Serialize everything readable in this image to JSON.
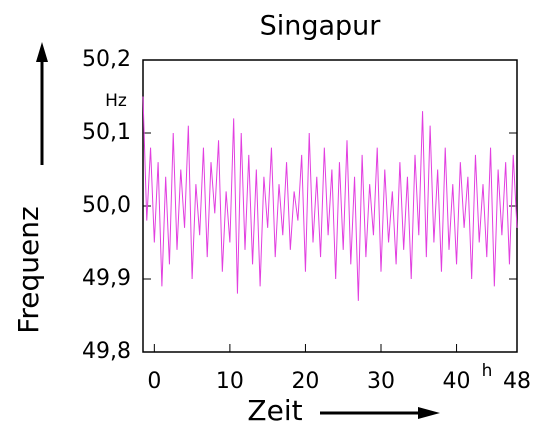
{
  "chart_data": {
    "type": "line",
    "title": "Singapur",
    "y_label": "Frequenz",
    "x_label": "Zeit",
    "y_unit": "Hz",
    "x_unit": "h",
    "xlim": [
      -1.5,
      48
    ],
    "xticks": [
      0,
      10,
      20,
      30,
      40,
      48
    ],
    "ylim": [
      49.8,
      50.2
    ],
    "yticks": [
      {
        "value": 49.8,
        "label": "49,8"
      },
      {
        "value": 49.9,
        "label": "49,9"
      },
      {
        "value": 50.0,
        "label": "50,0"
      },
      {
        "value": 50.1,
        "label": "50,1"
      },
      {
        "value": 50.2,
        "label": "50,2"
      }
    ],
    "x": [
      -1.5,
      -1,
      -0.5,
      0,
      0.5,
      1,
      1.5,
      2,
      2.5,
      3,
      3.5,
      4,
      4.5,
      5,
      5.5,
      6,
      6.5,
      7,
      7.5,
      8,
      8.5,
      9,
      9.5,
      10,
      10.5,
      11,
      11.5,
      12,
      12.5,
      13,
      13.5,
      14,
      14.5,
      15,
      15.5,
      16,
      16.5,
      17,
      17.5,
      18,
      18.5,
      19,
      19.5,
      20,
      20.5,
      21,
      21.5,
      22,
      22.5,
      23,
      23.5,
      24,
      24.5,
      25,
      25.5,
      26,
      26.5,
      27,
      27.5,
      28,
      28.5,
      29,
      29.5,
      30,
      30.5,
      31,
      31.5,
      32,
      32.5,
      33,
      33.5,
      34,
      34.5,
      35,
      35.5,
      36,
      36.5,
      37,
      37.5,
      38,
      38.5,
      39,
      39.5,
      40,
      40.5,
      41,
      41.5,
      42,
      42.5,
      43,
      43.5,
      44,
      44.5,
      45,
      45.5,
      46,
      46.5,
      47,
      47.5,
      48
    ],
    "series": [
      {
        "color": "#e23fe0",
        "values": [
          50.15,
          49.98,
          50.08,
          49.95,
          50.06,
          49.89,
          50.04,
          49.92,
          50.1,
          49.94,
          50.05,
          49.97,
          50.11,
          49.9,
          50.03,
          49.96,
          50.08,
          49.93,
          50.06,
          49.99,
          50.09,
          49.91,
          50.02,
          49.95,
          50.12,
          49.88,
          50.1,
          49.94,
          50.07,
          49.92,
          50.05,
          49.89,
          50.04,
          49.97,
          50.08,
          49.93,
          50.03,
          49.96,
          50.06,
          49.94,
          50.02,
          49.98,
          50.07,
          49.91,
          50.1,
          49.95,
          50.04,
          49.93,
          50.08,
          49.96,
          50.05,
          49.9,
          50.06,
          49.94,
          50.09,
          49.92,
          50.04,
          49.87,
          50.07,
          49.93,
          50.03,
          49.96,
          50.08,
          49.91,
          50.05,
          49.95,
          50.02,
          49.92,
          50.06,
          49.94,
          50.04,
          49.9,
          50.07,
          49.96,
          50.13,
          49.93,
          50.11,
          49.95,
          50.05,
          49.91,
          50.08,
          49.94,
          50.03,
          49.92,
          50.06,
          49.97,
          50.04,
          49.9,
          50.07,
          49.95,
          50.03,
          49.93,
          50.08,
          49.89,
          50.05,
          49.96,
          50.06,
          49.92,
          50.07,
          49.97
        ]
      }
    ]
  }
}
